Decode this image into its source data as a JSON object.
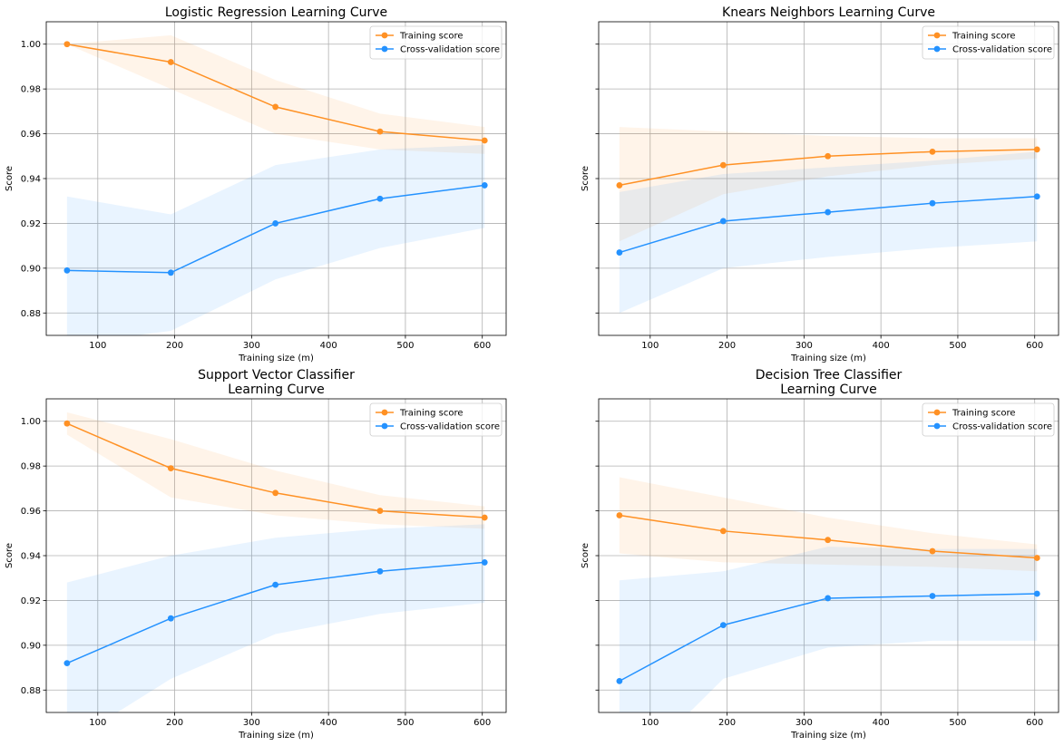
{
  "chart_data": [
    {
      "type": "line",
      "title_lines": [
        "Logistic Regression Learning Curve"
      ],
      "xlabel": "Training size (m)",
      "ylabel": "Score",
      "xlim": [
        33,
        631
      ],
      "ylim": [
        0.87,
        1.01
      ],
      "xticks": [
        100,
        200,
        300,
        400,
        500,
        600
      ],
      "yticks": [
        0.88,
        0.9,
        0.92,
        0.94,
        0.96,
        0.98,
        1.0
      ],
      "show_ytick_labels": true,
      "grid": true,
      "legend_position": "top-right",
      "x": [
        60,
        195,
        331,
        467,
        603
      ],
      "series": [
        {
          "name": "Training score",
          "color": "#ff9124",
          "values": [
            1.0,
            0.992,
            0.972,
            0.961,
            0.957
          ],
          "band_upper": [
            1.0,
            1.004,
            0.984,
            0.969,
            0.963
          ],
          "band_lower": [
            1.0,
            0.98,
            0.96,
            0.953,
            0.951
          ]
        },
        {
          "name": "Cross-validation score",
          "color": "#2492ff",
          "values": [
            0.899,
            0.898,
            0.92,
            0.931,
            0.937
          ],
          "band_upper": [
            0.932,
            0.924,
            0.946,
            0.953,
            0.955
          ],
          "band_lower": [
            0.866,
            0.872,
            0.895,
            0.909,
            0.918
          ]
        }
      ]
    },
    {
      "type": "line",
      "title_lines": [
        "Knears Neighbors Learning Curve"
      ],
      "xlabel": "Training size (m)",
      "ylabel": "Score",
      "xlim": [
        33,
        631
      ],
      "ylim": [
        0.87,
        1.01
      ],
      "xticks": [
        100,
        200,
        300,
        400,
        500,
        600
      ],
      "yticks": [
        0.88,
        0.9,
        0.92,
        0.94,
        0.96,
        0.98,
        1.0
      ],
      "show_ytick_labels": false,
      "grid": true,
      "legend_position": "top-right",
      "x": [
        60,
        195,
        331,
        467,
        603
      ],
      "series": [
        {
          "name": "Training score",
          "color": "#ff9124",
          "values": [
            0.937,
            0.946,
            0.95,
            0.952,
            0.953
          ],
          "band_upper": [
            0.963,
            0.961,
            0.959,
            0.958,
            0.958
          ],
          "band_lower": [
            0.912,
            0.933,
            0.941,
            0.946,
            0.949
          ]
        },
        {
          "name": "Cross-validation score",
          "color": "#2492ff",
          "values": [
            0.907,
            0.921,
            0.925,
            0.929,
            0.932
          ],
          "band_upper": [
            0.934,
            0.942,
            0.945,
            0.948,
            0.952
          ],
          "band_lower": [
            0.88,
            0.9,
            0.905,
            0.909,
            0.912
          ]
        }
      ]
    },
    {
      "type": "line",
      "title_lines": [
        "Support Vector Classifier",
        "Learning Curve"
      ],
      "xlabel": "Training size (m)",
      "ylabel": "Score",
      "xlim": [
        33,
        631
      ],
      "ylim": [
        0.87,
        1.01
      ],
      "xticks": [
        100,
        200,
        300,
        400,
        500,
        600
      ],
      "yticks": [
        0.88,
        0.9,
        0.92,
        0.94,
        0.96,
        0.98,
        1.0
      ],
      "show_ytick_labels": true,
      "grid": true,
      "legend_position": "top-right",
      "x": [
        60,
        195,
        331,
        467,
        603
      ],
      "series": [
        {
          "name": "Training score",
          "color": "#ff9124",
          "values": [
            0.999,
            0.979,
            0.968,
            0.96,
            0.957
          ],
          "band_upper": [
            1.004,
            0.992,
            0.978,
            0.967,
            0.962
          ],
          "band_lower": [
            0.994,
            0.966,
            0.958,
            0.954,
            0.952
          ]
        },
        {
          "name": "Cross-validation score",
          "color": "#2492ff",
          "values": [
            0.892,
            0.912,
            0.927,
            0.933,
            0.937
          ],
          "band_upper": [
            0.928,
            0.94,
            0.948,
            0.952,
            0.954
          ],
          "band_lower": [
            0.856,
            0.885,
            0.905,
            0.914,
            0.919
          ]
        }
      ]
    },
    {
      "type": "line",
      "title_lines": [
        "Decision Tree Classifier",
        "Learning Curve"
      ],
      "xlabel": "Training size (m)",
      "ylabel": "Score",
      "xlim": [
        33,
        631
      ],
      "ylim": [
        0.87,
        1.01
      ],
      "xticks": [
        100,
        200,
        300,
        400,
        500,
        600
      ],
      "yticks": [
        0.88,
        0.9,
        0.92,
        0.94,
        0.96,
        0.98,
        1.0
      ],
      "show_ytick_labels": false,
      "grid": true,
      "legend_position": "top-right",
      "x": [
        60,
        195,
        331,
        467,
        603
      ],
      "series": [
        {
          "name": "Training score",
          "color": "#ff9124",
          "values": [
            0.958,
            0.951,
            0.947,
            0.942,
            0.939
          ],
          "band_upper": [
            0.975,
            0.966,
            0.957,
            0.95,
            0.945
          ],
          "band_lower": [
            0.941,
            0.937,
            0.936,
            0.935,
            0.933
          ]
        },
        {
          "name": "Cross-validation score",
          "color": "#2492ff",
          "values": [
            0.884,
            0.909,
            0.921,
            0.922,
            0.923
          ],
          "band_upper": [
            0.929,
            0.933,
            0.944,
            0.943,
            0.943
          ],
          "band_lower": [
            0.839,
            0.885,
            0.899,
            0.902,
            0.902
          ]
        }
      ]
    }
  ]
}
